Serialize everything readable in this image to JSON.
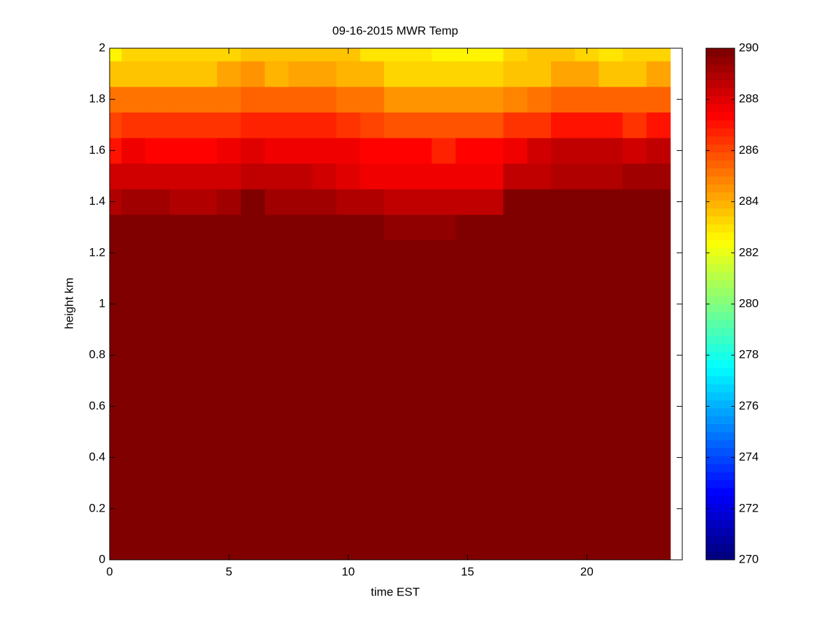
{
  "chart_data": {
    "type": "heatmap",
    "title": "09-16-2015 MWR Temp",
    "xlabel": "time EST",
    "ylabel": "height km",
    "colormap": "jet",
    "x_edges": [
      0,
      0.5,
      1.5,
      2.5,
      3.5,
      4.5,
      5.5,
      6.5,
      7.5,
      8.5,
      9.5,
      10.5,
      11.5,
      12.5,
      13.5,
      14.5,
      15.5,
      16.5,
      17.5,
      18.5,
      19.5,
      20.5,
      21.5,
      22.5,
      23.5
    ],
    "y_edges": [
      0,
      1.25,
      1.35,
      1.45,
      1.55,
      1.65,
      1.75,
      1.85,
      1.95,
      2
    ],
    "z": [
      [
        292,
        292,
        292,
        292,
        292,
        292,
        292,
        292,
        292,
        292,
        292,
        292,
        292,
        292,
        292,
        292,
        292,
        292,
        292,
        292,
        292,
        292,
        292,
        292
      ],
      [
        291,
        291,
        291,
        291,
        291,
        291,
        291,
        291,
        291,
        291,
        291,
        291,
        289.5,
        289.5,
        289.5,
        291,
        291,
        291,
        291,
        291,
        291,
        291,
        291,
        291
      ],
      [
        288.8,
        289.3,
        289.3,
        289.0,
        289.0,
        289.3,
        289.8,
        289.3,
        289.3,
        289.3,
        288.8,
        288.8,
        288.5,
        288.5,
        288.5,
        288.5,
        288.7,
        290.5,
        290.5,
        290.5,
        290.5,
        290.5,
        290.5,
        290.5
      ],
      [
        288.3,
        288.3,
        288.3,
        288.3,
        288.3,
        288.3,
        288.5,
        288.5,
        288.5,
        288.3,
        288.0,
        287.7,
        287.5,
        287.5,
        287.5,
        287.5,
        287.8,
        288.5,
        288.5,
        289.0,
        289.0,
        289.0,
        289.2,
        289.3
      ],
      [
        287.0,
        287.5,
        287.2,
        287.2,
        287.2,
        287.5,
        288.0,
        287.5,
        287.5,
        287.5,
        287.7,
        287.2,
        287.2,
        287.2,
        286.8,
        287.2,
        287.2,
        287.6,
        288.2,
        288.5,
        288.5,
        288.5,
        288.3,
        288.6
      ],
      [
        286.0,
        286.3,
        286.3,
        286.3,
        286.3,
        286.3,
        286.6,
        286.6,
        286.6,
        286.6,
        286.4,
        286.1,
        285.8,
        285.8,
        285.8,
        285.8,
        285.8,
        286.5,
        286.5,
        287.0,
        287.0,
        287.0,
        286.4,
        287.0
      ],
      [
        285.3,
        285.2,
        285.2,
        285.2,
        285.2,
        285.2,
        285.6,
        285.6,
        285.6,
        285.6,
        285.2,
        285.2,
        284.6,
        284.6,
        284.6,
        284.6,
        284.6,
        284.8,
        285.3,
        285.4,
        285.4,
        285.4,
        285.4,
        285.4
      ],
      [
        283.6,
        283.6,
        283.6,
        283.6,
        283.6,
        284.2,
        284.5,
        283.8,
        284.3,
        284.3,
        283.8,
        283.8,
        283.4,
        283.4,
        283.2,
        283.2,
        283.2,
        283.7,
        283.7,
        284.2,
        284.2,
        283.6,
        283.6,
        284.3
      ],
      [
        282.7,
        283.3,
        283.3,
        283.3,
        283.3,
        283.3,
        283.5,
        283.5,
        283.5,
        283.5,
        283.5,
        283.0,
        283.0,
        283.0,
        282.8,
        282.8,
        282.8,
        283.2,
        283.5,
        283.6,
        283.3,
        283.0,
        283.3,
        283.3
      ]
    ],
    "xlim": [
      0,
      24
    ],
    "ylim": [
      0,
      2
    ],
    "xticks": [
      0,
      5,
      10,
      15,
      20
    ],
    "yticks": [
      0,
      0.2,
      0.4,
      0.6,
      0.8,
      1,
      1.2,
      1.4,
      1.6,
      1.8,
      2
    ],
    "clim": [
      270,
      290
    ],
    "cticks": [
      270,
      272,
      274,
      276,
      278,
      280,
      282,
      284,
      286,
      288,
      290
    ]
  }
}
